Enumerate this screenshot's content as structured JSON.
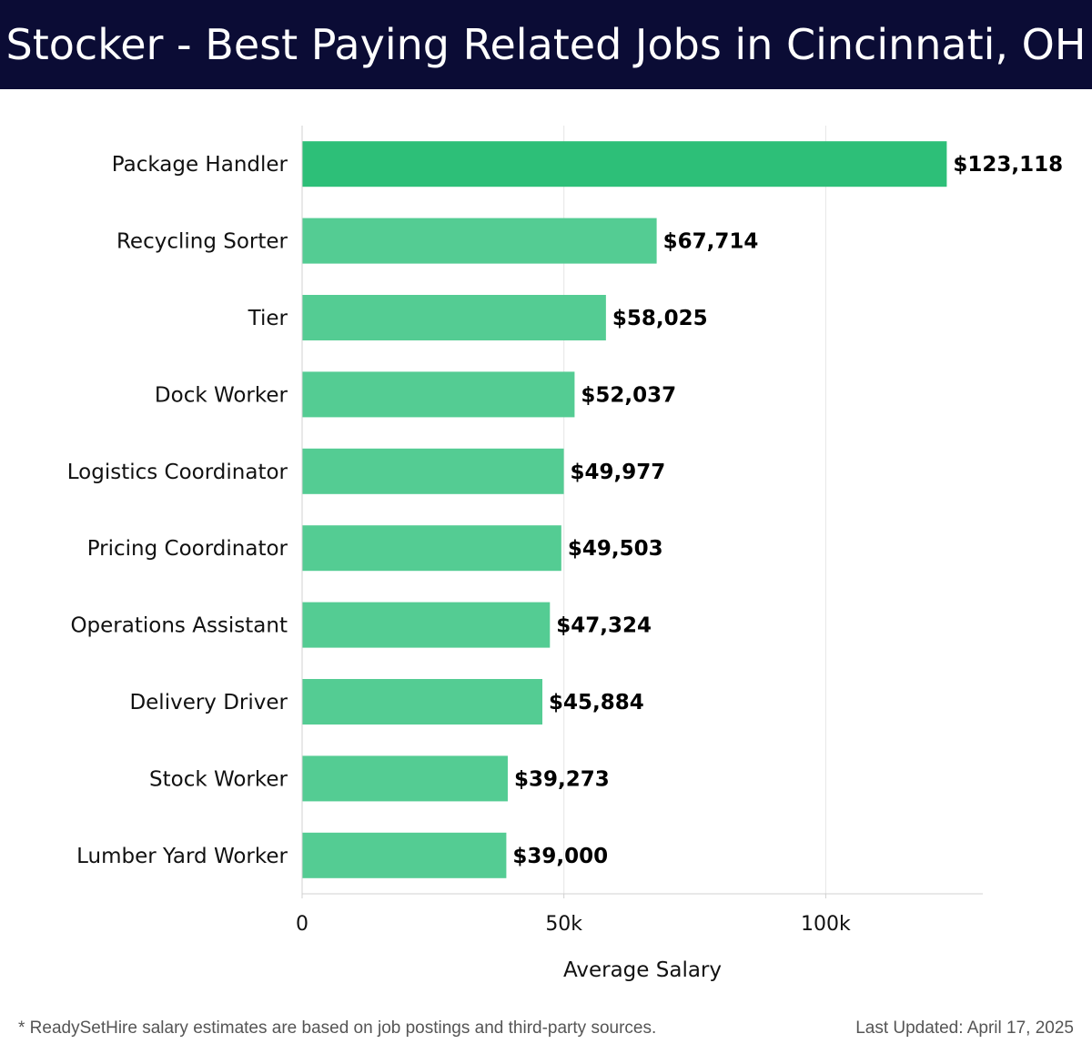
{
  "header": {
    "title": "Stocker - Best Paying Related Jobs in Cincinnati, OH",
    "background_color": "#0b0c35"
  },
  "chart_data": {
    "type": "bar",
    "orientation": "horizontal",
    "categories": [
      "Package Handler",
      "Recycling Sorter",
      "Tier",
      "Dock Worker",
      "Logistics Coordinator",
      "Pricing Coordinator",
      "Operations Assistant",
      "Delivery Driver",
      "Stock Worker",
      "Lumber Yard Worker"
    ],
    "values": [
      123118,
      67714,
      58025,
      52037,
      49977,
      49503,
      47324,
      45884,
      39273,
      39000
    ],
    "value_labels": [
      "$123,118",
      "$67,714",
      "$58,025",
      "$52,037",
      "$49,977",
      "$49,503",
      "$47,324",
      "$45,884",
      "$39,273",
      "$39,000"
    ],
    "xlabel": "Average Salary",
    "ylabel": "",
    "xlim": [
      0,
      130000
    ],
    "xticks": [
      0,
      50000,
      100000
    ],
    "xtick_labels": [
      "0",
      "50k",
      "100k"
    ],
    "grid": true,
    "colors": {
      "highlight_bar": "#2dbf78",
      "bar": "#54cc93",
      "grid": "#e6e6e6",
      "axis": "#d0d0d0"
    }
  },
  "footer": {
    "note": "* ReadySetHire salary estimates are based on job postings and third-party sources.",
    "last_updated": "Last Updated: April 17, 2025"
  }
}
